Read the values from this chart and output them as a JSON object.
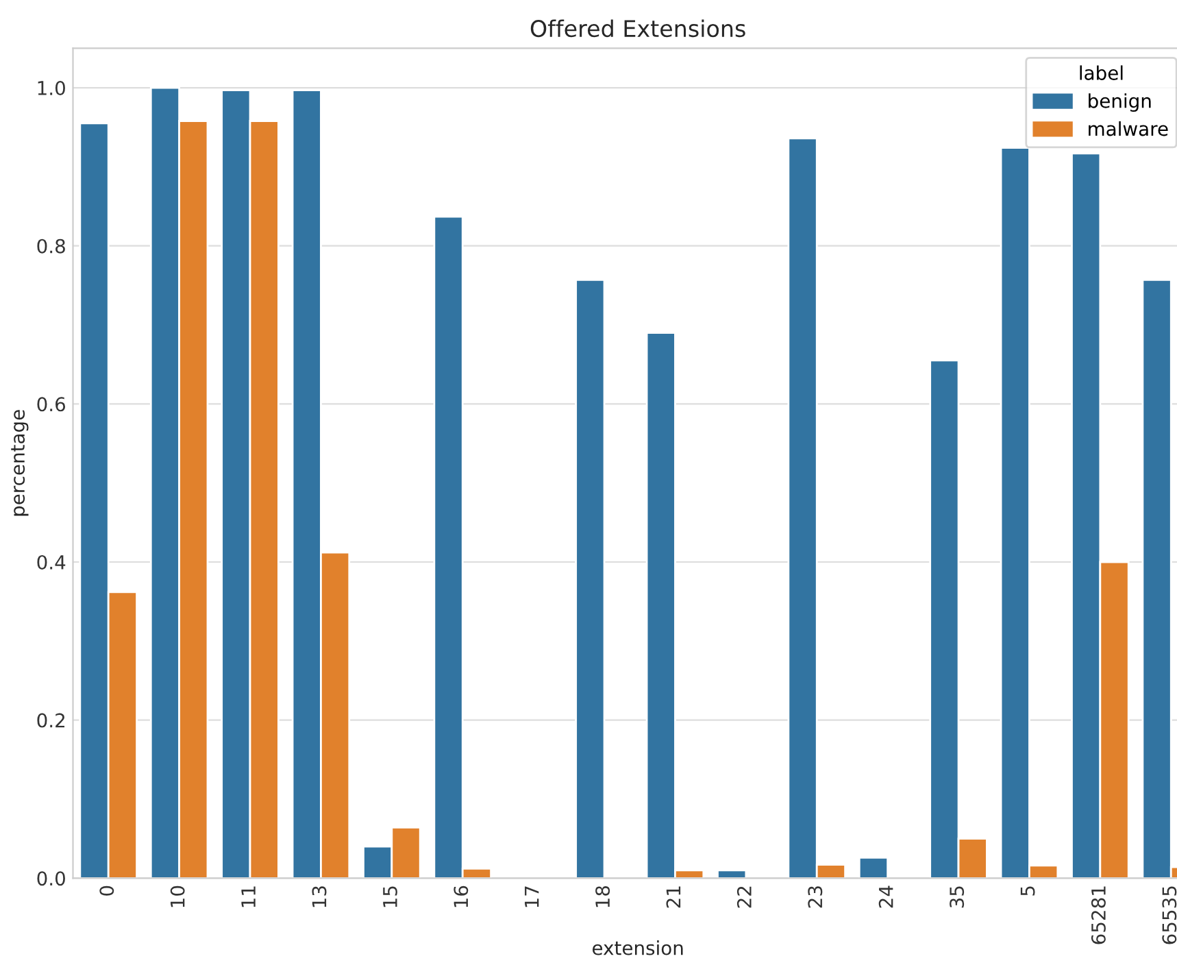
{
  "chart_data": {
    "type": "bar",
    "title": "Offered Extensions",
    "xlabel": "extension",
    "ylabel": "percentage",
    "categories": [
      "0",
      "10",
      "11",
      "13",
      "15",
      "16",
      "17",
      "18",
      "21",
      "22",
      "23",
      "24",
      "35",
      "5",
      "65281",
      "65535"
    ],
    "series": [
      {
        "name": "benign",
        "color": "#3274a1",
        "values": [
          0.955,
          1.0,
          0.997,
          0.997,
          0.04,
          0.837,
          null,
          0.757,
          0.69,
          0.01,
          0.936,
          0.026,
          0.655,
          0.924,
          0.917,
          0.757
        ]
      },
      {
        "name": "malware",
        "color": "#e1812c",
        "values": [
          0.362,
          0.958,
          0.958,
          0.412,
          0.064,
          0.012,
          null,
          null,
          0.01,
          null,
          0.017,
          null,
          0.05,
          0.016,
          0.4,
          0.014
        ]
      }
    ],
    "legend_title": "label",
    "legend": "top right",
    "grid": "y",
    "ylim": [
      0,
      1.05
    ],
    "yticks": [
      {
        "value": 0,
        "label": "0.0"
      },
      0.2,
      0.4,
      0.6,
      0.8,
      {
        "value": 1,
        "label": "1.0"
      }
    ]
  }
}
